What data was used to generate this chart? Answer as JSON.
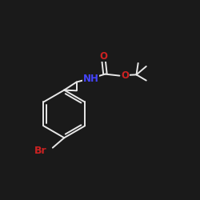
{
  "background_color": "#1a1a1a",
  "bond_color": "#e8e8e8",
  "atom_colors": {
    "Br": "#cc2222",
    "N": "#4444ff",
    "O": "#cc2222",
    "C": "#e8e8e8"
  },
  "figsize": [
    2.5,
    2.5
  ],
  "dpi": 100,
  "bond_lw": 1.4,
  "font_size_atom": 8.5
}
